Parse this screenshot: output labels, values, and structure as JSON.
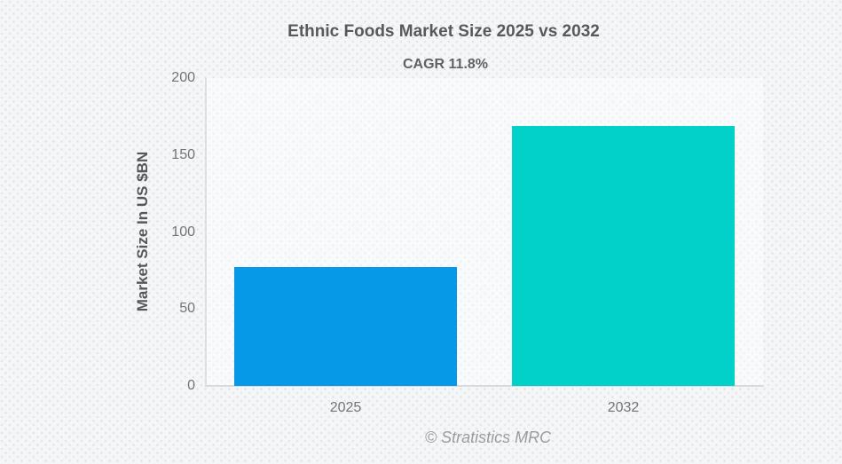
{
  "chart": {
    "title": "Ethnic Foods Market Size 2025 vs 2032",
    "subtitle": "CAGR 11.8%",
    "y_axis_title": "Market Size In US $BN",
    "footer": "© Stratistics MRC"
  },
  "chart_data": {
    "type": "bar",
    "title": "Ethnic Foods Market Size 2025 vs 2032",
    "subtitle": "CAGR 11.8%",
    "categories": [
      "2025",
      "2032"
    ],
    "values": [
      77.3,
      168.9
    ],
    "xlabel": "",
    "ylabel": "Market Size In US $BN",
    "ylim": [
      0,
      200
    ],
    "yticks": [
      0,
      50,
      100,
      150,
      200
    ],
    "grid": false,
    "legend_position": "none",
    "bar_colors": [
      "#0699e8",
      "#02d1ca"
    ],
    "annotations": [
      "CAGR 11.8%"
    ]
  },
  "colors": {
    "bar_2025": "#0699e8",
    "bar_2032": "#02d1ca",
    "title_text": "#58595b",
    "axis_text": "#737477",
    "axis_line": "#dde0e2",
    "footer_text": "#9b9c9e",
    "background": "#f5f6f7"
  }
}
